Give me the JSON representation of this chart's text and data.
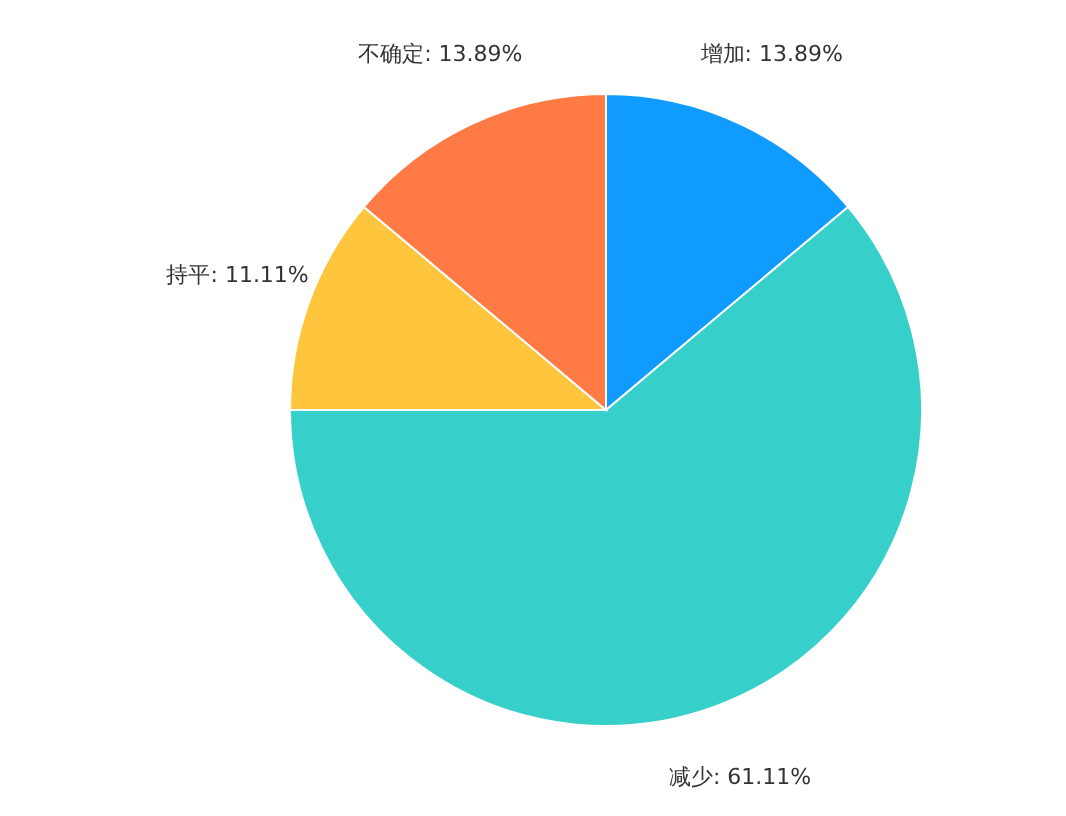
{
  "chart_data": {
    "type": "pie",
    "categories": [
      "增加",
      "减少",
      "持平",
      "不确定"
    ],
    "values": [
      13.89,
      61.11,
      11.11,
      13.89
    ],
    "value_labels": [
      "13.89%",
      "61.11%",
      "11.11%",
      "13.89%"
    ],
    "colors": [
      "#0f9bff",
      "#36cfc9",
      "#ffc53d",
      "#ff7a45"
    ]
  }
}
